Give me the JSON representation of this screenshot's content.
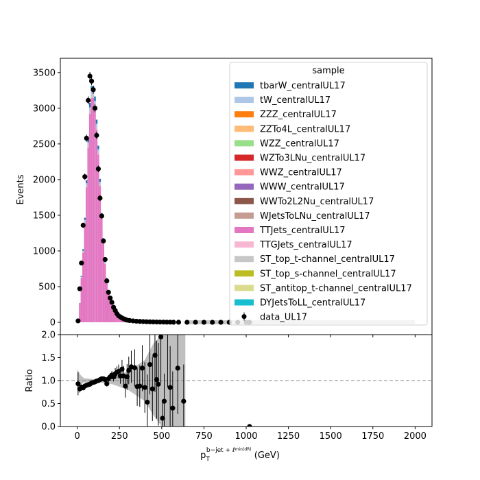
{
  "chart_data": {
    "type": "bar",
    "title": "",
    "xlabel_main": "p",
    "xlabel_sub": "T",
    "xlabel_sup": "b−jet + ℓ",
    "xlabel_supsub": "min(dR)",
    "xlabel_unit": "(GeV)",
    "top_panel": {
      "ylabel": "Events",
      "ylim": [
        0,
        3700
      ],
      "yticks": [
        0,
        500,
        1000,
        1500,
        2000,
        2500,
        3000,
        3500
      ],
      "xlim": [
        -100,
        2100
      ],
      "grid": false,
      "legend": {
        "title": "sample",
        "placement": "top-right",
        "entries": [
          {
            "label": "tbarW_centralUL17",
            "color": "#1f77b4"
          },
          {
            "label": "tW_centralUL17",
            "color": "#aec7e8"
          },
          {
            "label": "ZZZ_centralUL17",
            "color": "#ff7f0e"
          },
          {
            "label": "ZZTo4L_centralUL17",
            "color": "#ffbb78"
          },
          {
            "label": "WZZ_centralUL17",
            "color": "#98df8a"
          },
          {
            "label": "WZTo3LNu_centralUL17",
            "color": "#d62728"
          },
          {
            "label": "WWZ_centralUL17",
            "color": "#ff9896"
          },
          {
            "label": "WWW_centralUL17",
            "color": "#9467bd"
          },
          {
            "label": "WWTo2L2Nu_centralUL17",
            "color": "#8c564b"
          },
          {
            "label": "WJetsToLNu_centralUL17",
            "color": "#c49c94"
          },
          {
            "label": "TTJets_centralUL17",
            "color": "#e377c2"
          },
          {
            "label": "TTGJets_centralUL17",
            "color": "#f7b6d2"
          },
          {
            "label": "ST_top_t-channel_centralUL17",
            "color": "#c7c7c7"
          },
          {
            "label": "ST_top_s-channel_centralUL17",
            "color": "#bcbd22"
          },
          {
            "label": "ST_antitop_t-channel_centralUL17",
            "color": "#dbdb8d"
          },
          {
            "label": "DYJetsToLL_centralUL17",
            "color": "#17becf"
          },
          {
            "label": "data_UL17",
            "color": "#000000",
            "marker": "errorbar"
          }
        ]
      },
      "mc_total": [
        [
          0,
          30
        ],
        [
          10,
          60
        ],
        [
          20,
          480
        ],
        [
          30,
          820
        ],
        [
          40,
          1230
        ],
        [
          50,
          1700
        ],
        [
          60,
          2280
        ],
        [
          70,
          2870
        ],
        [
          80,
          3280
        ],
        [
          90,
          3340
        ],
        [
          100,
          3280
        ],
        [
          110,
          3050
        ],
        [
          120,
          2630
        ],
        [
          130,
          2320
        ],
        [
          140,
          1700
        ],
        [
          150,
          1360
        ],
        [
          160,
          1000
        ],
        [
          170,
          720
        ],
        [
          180,
          520
        ],
        [
          190,
          390
        ],
        [
          200,
          290
        ],
        [
          210,
          230
        ],
        [
          220,
          175
        ],
        [
          230,
          130
        ],
        [
          240,
          100
        ],
        [
          250,
          80
        ],
        [
          260,
          60
        ],
        [
          270,
          48
        ],
        [
          280,
          38
        ],
        [
          290,
          30
        ],
        [
          300,
          25
        ],
        [
          320,
          18
        ],
        [
          340,
          14
        ],
        [
          360,
          11
        ],
        [
          380,
          9
        ],
        [
          400,
          7
        ],
        [
          450,
          5
        ],
        [
          500,
          3
        ],
        [
          600,
          2
        ],
        [
          700,
          1
        ],
        [
          800,
          1
        ],
        [
          1000,
          0
        ],
        [
          2000,
          0
        ]
      ],
      "data_points": [
        [
          5,
          20
        ],
        [
          15,
          470
        ],
        [
          25,
          830
        ],
        [
          35,
          1360
        ],
        [
          45,
          2040
        ],
        [
          55,
          2580
        ],
        [
          65,
          3110
        ],
        [
          75,
          3450
        ],
        [
          85,
          3380
        ],
        [
          95,
          3260
        ],
        [
          105,
          3000
        ],
        [
          115,
          2620
        ],
        [
          125,
          2150
        ],
        [
          135,
          1740
        ],
        [
          145,
          1490
        ],
        [
          155,
          1140
        ],
        [
          165,
          880
        ],
        [
          175,
          580
        ],
        [
          185,
          420
        ],
        [
          195,
          340
        ],
        [
          205,
          280
        ],
        [
          215,
          210
        ],
        [
          225,
          165
        ],
        [
          235,
          120
        ],
        [
          245,
          90
        ],
        [
          255,
          75
        ],
        [
          265,
          60
        ],
        [
          275,
          48
        ],
        [
          285,
          40
        ],
        [
          295,
          30
        ],
        [
          310,
          25
        ],
        [
          330,
          20
        ],
        [
          350,
          15
        ],
        [
          370,
          12
        ],
        [
          390,
          10
        ],
        [
          410,
          8
        ],
        [
          430,
          6
        ],
        [
          450,
          5
        ],
        [
          470,
          4
        ],
        [
          490,
          3
        ],
        [
          510,
          3
        ],
        [
          530,
          2
        ],
        [
          550,
          2
        ],
        [
          570,
          1
        ],
        [
          600,
          1
        ],
        [
          650,
          0
        ],
        [
          700,
          0
        ],
        [
          750,
          0
        ],
        [
          800,
          0
        ],
        [
          850,
          0
        ],
        [
          900,
          0
        ],
        [
          950,
          0
        ],
        [
          1000,
          0
        ],
        [
          1020,
          0
        ]
      ]
    },
    "ratio_panel": {
      "ylabel": "Ratio",
      "ylim": [
        0,
        2
      ],
      "yticks": [
        0.0,
        0.5,
        1.0,
        1.5,
        2.0
      ],
      "reference_line": 1.0,
      "points": [
        [
          5,
          0.93,
          0.25
        ],
        [
          15,
          0.82,
          0.08
        ],
        [
          25,
          0.86,
          0.05
        ],
        [
          35,
          0.84,
          0.04
        ],
        [
          45,
          0.88,
          0.03
        ],
        [
          55,
          0.9,
          0.03
        ],
        [
          65,
          0.91,
          0.03
        ],
        [
          75,
          0.92,
          0.03
        ],
        [
          85,
          0.95,
          0.03
        ],
        [
          95,
          0.96,
          0.03
        ],
        [
          105,
          0.97,
          0.03
        ],
        [
          115,
          0.99,
          0.03
        ],
        [
          125,
          1.0,
          0.03
        ],
        [
          135,
          1.02,
          0.03
        ],
        [
          145,
          1.04,
          0.04
        ],
        [
          155,
          1.04,
          0.04
        ],
        [
          165,
          1.02,
          0.05
        ],
        [
          175,
          0.93,
          0.06
        ],
        [
          185,
          1.04,
          0.07
        ],
        [
          195,
          1.08,
          0.08
        ],
        [
          205,
          1.12,
          0.09
        ],
        [
          215,
          1.08,
          0.1
        ],
        [
          225,
          1.15,
          0.12
        ],
        [
          235,
          1.18,
          0.13
        ],
        [
          245,
          1.2,
          0.15
        ],
        [
          255,
          1.1,
          0.17
        ],
        [
          265,
          1.25,
          0.2
        ],
        [
          275,
          1.1,
          0.22
        ],
        [
          285,
          0.88,
          0.25
        ],
        [
          295,
          1.08,
          0.28
        ],
        [
          305,
          1.22,
          0.3
        ],
        [
          320,
          1.3,
          0.35
        ],
        [
          340,
          1.28,
          0.4
        ],
        [
          355,
          0.87,
          0.42
        ],
        [
          370,
          0.88,
          0.45
        ],
        [
          385,
          1.27,
          0.5
        ],
        [
          400,
          0.85,
          0.55
        ],
        [
          415,
          0.53,
          0.6
        ],
        [
          430,
          1.35,
          0.65
        ],
        [
          445,
          0.82,
          0.7
        ],
        [
          460,
          1.55,
          0.8
        ],
        [
          470,
          1.02,
          0.85
        ],
        [
          480,
          0.92,
          0.9
        ],
        [
          495,
          1.95,
          1.0
        ],
        [
          505,
          0.18,
          0.4
        ],
        [
          515,
          0.55,
          0.6
        ],
        [
          535,
          2.05,
          1.2
        ],
        [
          550,
          0.85,
          0.9
        ],
        [
          565,
          0.4,
          0.8
        ],
        [
          595,
          1.27,
          1.0
        ],
        [
          630,
          0.55,
          0.8
        ],
        [
          1020,
          0.0,
          0.0
        ]
      ],
      "mc_uncertainty_band": [
        [
          0,
          0.75,
          1.25
        ],
        [
          20,
          0.9,
          1.12
        ],
        [
          40,
          0.96,
          1.05
        ],
        [
          100,
          0.97,
          1.03
        ],
        [
          200,
          0.93,
          1.07
        ],
        [
          300,
          0.8,
          1.2
        ],
        [
          400,
          0.55,
          1.45
        ],
        [
          450,
          0.25,
          1.8
        ],
        [
          500,
          0.0,
          2.0
        ],
        [
          640,
          0.0,
          2.0
        ]
      ]
    },
    "xticks": [
      0,
      250,
      500,
      750,
      1000,
      1250,
      1500,
      1750,
      2000
    ]
  }
}
